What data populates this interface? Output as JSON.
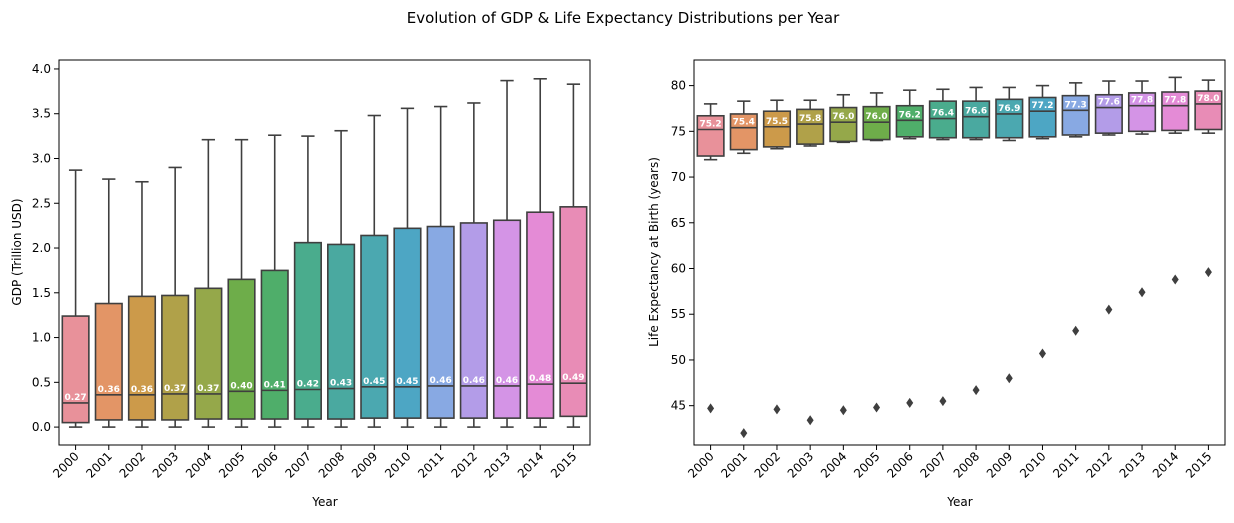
{
  "figure": {
    "title": "Evolution of GDP & Life Expectancy Distributions per Year"
  },
  "chart_data": [
    {
      "type": "box",
      "xlabel": "Year",
      "ylabel": "GDP (Trillion USD)",
      "ylim": [
        -0.2,
        4.1
      ],
      "yticks": [
        "0.0",
        "0.5",
        "1.0",
        "1.5",
        "2.0",
        "2.5",
        "3.0",
        "3.5",
        "4.0"
      ],
      "grid": false,
      "categories": [
        "2000",
        "2001",
        "2002",
        "2003",
        "2004",
        "2005",
        "2006",
        "2007",
        "2008",
        "2009",
        "2010",
        "2011",
        "2012",
        "2013",
        "2014",
        "2015"
      ],
      "colors": [
        "#e8919a",
        "#e39566",
        "#cc9a4a",
        "#b0a149",
        "#95a84a",
        "#6ead4a",
        "#4fae6a",
        "#4aac8d",
        "#4aa9a0",
        "#4ba8b0",
        "#4da6c4",
        "#88a9e3",
        "#b39ce8",
        "#d494e6",
        "#e48bd6",
        "#e88cb6"
      ],
      "boxes": [
        {
          "lower_whisker": 0.0,
          "q1": 0.05,
          "median": 0.27,
          "q3": 1.24,
          "upper_whisker": 2.87,
          "median_label": "0.27"
        },
        {
          "lower_whisker": 0.0,
          "q1": 0.08,
          "median": 0.36,
          "q3": 1.38,
          "upper_whisker": 2.77,
          "median_label": "0.36"
        },
        {
          "lower_whisker": 0.0,
          "q1": 0.08,
          "median": 0.36,
          "q3": 1.46,
          "upper_whisker": 2.74,
          "median_label": "0.36"
        },
        {
          "lower_whisker": 0.0,
          "q1": 0.08,
          "median": 0.37,
          "q3": 1.47,
          "upper_whisker": 2.9,
          "median_label": "0.37"
        },
        {
          "lower_whisker": 0.0,
          "q1": 0.09,
          "median": 0.37,
          "q3": 1.55,
          "upper_whisker": 3.21,
          "median_label": "0.37"
        },
        {
          "lower_whisker": 0.0,
          "q1": 0.09,
          "median": 0.4,
          "q3": 1.65,
          "upper_whisker": 3.21,
          "median_label": "0.40"
        },
        {
          "lower_whisker": 0.0,
          "q1": 0.09,
          "median": 0.41,
          "q3": 1.75,
          "upper_whisker": 3.26,
          "median_label": "0.41"
        },
        {
          "lower_whisker": 0.0,
          "q1": 0.09,
          "median": 0.42,
          "q3": 2.06,
          "upper_whisker": 3.25,
          "median_label": "0.42"
        },
        {
          "lower_whisker": 0.0,
          "q1": 0.09,
          "median": 0.43,
          "q3": 2.04,
          "upper_whisker": 3.31,
          "median_label": "0.43"
        },
        {
          "lower_whisker": 0.0,
          "q1": 0.1,
          "median": 0.45,
          "q3": 2.14,
          "upper_whisker": 3.48,
          "median_label": "0.45"
        },
        {
          "lower_whisker": 0.0,
          "q1": 0.1,
          "median": 0.45,
          "q3": 2.22,
          "upper_whisker": 3.56,
          "median_label": "0.45"
        },
        {
          "lower_whisker": 0.0,
          "q1": 0.1,
          "median": 0.46,
          "q3": 2.24,
          "upper_whisker": 3.58,
          "median_label": "0.46"
        },
        {
          "lower_whisker": 0.0,
          "q1": 0.1,
          "median": 0.46,
          "q3": 2.28,
          "upper_whisker": 3.62,
          "median_label": "0.46"
        },
        {
          "lower_whisker": 0.0,
          "q1": 0.1,
          "median": 0.46,
          "q3": 2.31,
          "upper_whisker": 3.87,
          "median_label": "0.46"
        },
        {
          "lower_whisker": 0.0,
          "q1": 0.1,
          "median": 0.48,
          "q3": 2.4,
          "upper_whisker": 3.89,
          "median_label": "0.48"
        },
        {
          "lower_whisker": 0.0,
          "q1": 0.12,
          "median": 0.49,
          "q3": 2.46,
          "upper_whisker": 3.83,
          "median_label": "0.49"
        }
      ]
    },
    {
      "type": "box",
      "xlabel": "Year",
      "ylabel": "Life Expectancy at Birth (years)",
      "ylim": [
        40.7,
        82.8
      ],
      "yticks": [
        "45",
        "50",
        "55",
        "60",
        "65",
        "70",
        "75",
        "80"
      ],
      "grid": false,
      "categories": [
        "2000",
        "2001",
        "2002",
        "2003",
        "2004",
        "2005",
        "2006",
        "2007",
        "2008",
        "2009",
        "2010",
        "2011",
        "2012",
        "2013",
        "2014",
        "2015"
      ],
      "colors": [
        "#e8919a",
        "#e39566",
        "#cc9a4a",
        "#b0a149",
        "#95a84a",
        "#6ead4a",
        "#4fae6a",
        "#4aac8d",
        "#4aa9a0",
        "#4ba8b0",
        "#4da6c4",
        "#88a9e3",
        "#b39ce8",
        "#d494e6",
        "#e48bd6",
        "#e88cb6"
      ],
      "boxes": [
        {
          "lower_whisker": 71.9,
          "q1": 72.3,
          "median": 75.2,
          "q3": 76.7,
          "upper_whisker": 78.0,
          "outliers": [
            44.7
          ],
          "median_label": "75.2"
        },
        {
          "lower_whisker": 72.6,
          "q1": 73.0,
          "median": 75.4,
          "q3": 76.9,
          "upper_whisker": 78.3,
          "outliers": [
            42.0
          ],
          "median_label": "75.4"
        },
        {
          "lower_whisker": 73.1,
          "q1": 73.3,
          "median": 75.5,
          "q3": 77.2,
          "upper_whisker": 78.4,
          "outliers": [
            44.6
          ],
          "median_label": "75.5"
        },
        {
          "lower_whisker": 73.4,
          "q1": 73.6,
          "median": 75.8,
          "q3": 77.4,
          "upper_whisker": 78.4,
          "outliers": [
            43.4
          ],
          "median_label": "75.8"
        },
        {
          "lower_whisker": 73.8,
          "q1": 73.9,
          "median": 76.0,
          "q3": 77.6,
          "upper_whisker": 79.0,
          "outliers": [
            44.5
          ],
          "median_label": "76.0"
        },
        {
          "lower_whisker": 74.0,
          "q1": 74.1,
          "median": 76.0,
          "q3": 77.7,
          "upper_whisker": 79.2,
          "outliers": [
            44.8
          ],
          "median_label": "76.0"
        },
        {
          "lower_whisker": 74.2,
          "q1": 74.4,
          "median": 76.2,
          "q3": 77.8,
          "upper_whisker": 79.5,
          "outliers": [
            45.3
          ],
          "median_label": "76.2"
        },
        {
          "lower_whisker": 74.1,
          "q1": 74.3,
          "median": 76.4,
          "q3": 78.3,
          "upper_whisker": 79.6,
          "outliers": [
            45.5
          ],
          "median_label": "76.4"
        },
        {
          "lower_whisker": 74.1,
          "q1": 74.3,
          "median": 76.6,
          "q3": 78.3,
          "upper_whisker": 79.8,
          "outliers": [
            46.7
          ],
          "median_label": "76.6"
        },
        {
          "lower_whisker": 74.0,
          "q1": 74.3,
          "median": 76.9,
          "q3": 78.5,
          "upper_whisker": 79.8,
          "outliers": [
            48.0
          ],
          "median_label": "76.9"
        },
        {
          "lower_whisker": 74.2,
          "q1": 74.4,
          "median": 77.2,
          "q3": 78.7,
          "upper_whisker": 80.0,
          "outliers": [
            50.7
          ],
          "median_label": "77.2"
        },
        {
          "lower_whisker": 74.4,
          "q1": 74.6,
          "median": 77.3,
          "q3": 78.9,
          "upper_whisker": 80.3,
          "outliers": [
            53.2
          ],
          "median_label": "77.3"
        },
        {
          "lower_whisker": 74.6,
          "q1": 74.8,
          "median": 77.6,
          "q3": 79.0,
          "upper_whisker": 80.5,
          "outliers": [
            55.5
          ],
          "median_label": "77.6"
        },
        {
          "lower_whisker": 74.7,
          "q1": 75.0,
          "median": 77.8,
          "q3": 79.2,
          "upper_whisker": 80.5,
          "outliers": [
            57.4
          ],
          "median_label": "77.8"
        },
        {
          "lower_whisker": 74.8,
          "q1": 75.1,
          "median": 77.8,
          "q3": 79.3,
          "upper_whisker": 80.9,
          "outliers": [
            58.8
          ],
          "median_label": "77.8"
        },
        {
          "lower_whisker": 74.8,
          "q1": 75.2,
          "median": 78.0,
          "q3": 79.4,
          "upper_whisker": 80.6,
          "outliers": [
            59.6
          ],
          "median_label": "78.0"
        }
      ]
    }
  ]
}
